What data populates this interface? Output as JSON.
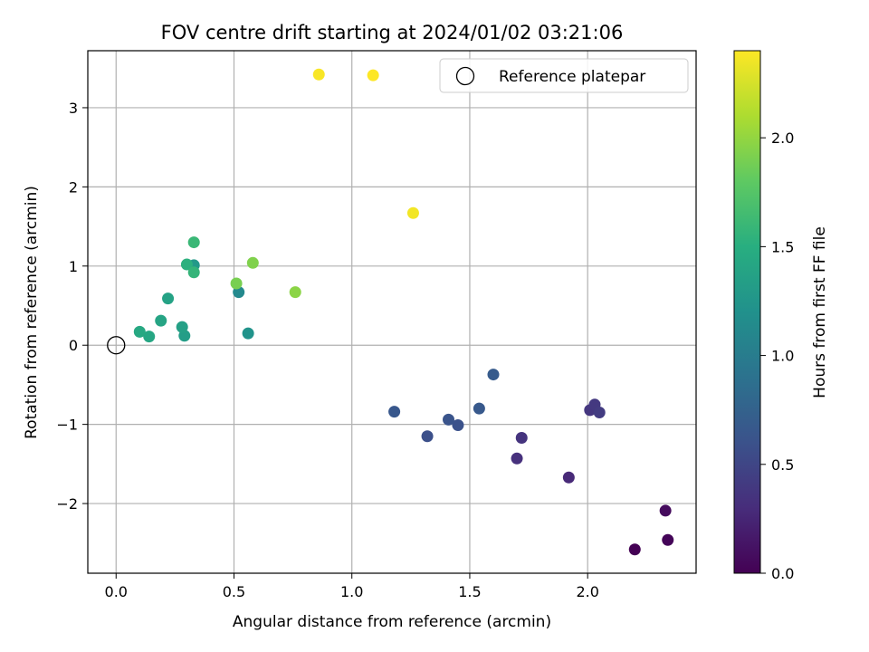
{
  "chart_data": {
    "type": "scatter",
    "title": "FOV centre drift starting at 2024/01/02 03:21:06",
    "xlabel": "Angular distance from reference (arcmin)",
    "ylabel": "Rotation from reference (arcmin)",
    "xlim": [
      -0.12,
      2.46
    ],
    "ylim": [
      -2.88,
      3.72
    ],
    "xticks": [
      0.0,
      0.5,
      1.0,
      1.5,
      2.0
    ],
    "xtick_labels": [
      "0.0",
      "0.5",
      "1.0",
      "1.5",
      "2.0"
    ],
    "yticks": [
      -2,
      -1,
      0,
      1,
      2,
      3
    ],
    "ytick_labels": [
      "−2",
      "−1",
      "0",
      "1",
      "2",
      "3"
    ],
    "grid": true,
    "colormap": "viridis",
    "colorbar": {
      "label": "Hours from first FF file",
      "range": [
        0.0,
        2.4
      ],
      "ticks": [
        0.0,
        0.5,
        1.0,
        1.5,
        2.0
      ],
      "tick_labels": [
        "0.0",
        "0.5",
        "1.0",
        "1.5",
        "2.0"
      ]
    },
    "legend": {
      "position": "top-right",
      "entries": [
        "Reference platepar"
      ]
    },
    "reference_point": {
      "x": 0.0,
      "y": 0.0
    },
    "points": [
      {
        "x": 2.2,
        "y": -2.58,
        "h": 0.0
      },
      {
        "x": 2.34,
        "y": -2.46,
        "h": 0.03
      },
      {
        "x": 2.33,
        "y": -2.09,
        "h": 0.07
      },
      {
        "x": 1.92,
        "y": -1.67,
        "h": 0.28
      },
      {
        "x": 1.7,
        "y": -1.43,
        "h": 0.33
      },
      {
        "x": 1.72,
        "y": -1.17,
        "h": 0.36
      },
      {
        "x": 2.01,
        "y": -0.82,
        "h": 0.38
      },
      {
        "x": 2.03,
        "y": -0.75,
        "h": 0.4
      },
      {
        "x": 2.05,
        "y": -0.85,
        "h": 0.42
      },
      {
        "x": 1.32,
        "y": -1.15,
        "h": 0.58
      },
      {
        "x": 1.45,
        "y": -1.01,
        "h": 0.6
      },
      {
        "x": 1.41,
        "y": -0.94,
        "h": 0.62
      },
      {
        "x": 1.18,
        "y": -0.84,
        "h": 0.65
      },
      {
        "x": 1.54,
        "y": -0.8,
        "h": 0.67
      },
      {
        "x": 1.6,
        "y": -0.37,
        "h": 0.68
      },
      {
        "x": 0.52,
        "y": 0.67,
        "h": 1.12
      },
      {
        "x": 0.56,
        "y": 0.15,
        "h": 1.22
      },
      {
        "x": 0.33,
        "y": 1.01,
        "h": 1.28
      },
      {
        "x": 0.29,
        "y": 0.12,
        "h": 1.32
      },
      {
        "x": 0.28,
        "y": 0.23,
        "h": 1.35
      },
      {
        "x": 0.22,
        "y": 0.59,
        "h": 1.38
      },
      {
        "x": 0.19,
        "y": 0.31,
        "h": 1.4
      },
      {
        "x": 0.14,
        "y": 0.11,
        "h": 1.42
      },
      {
        "x": 0.1,
        "y": 0.17,
        "h": 1.44
      },
      {
        "x": 0.3,
        "y": 1.02,
        "h": 1.52
      },
      {
        "x": 0.33,
        "y": 0.92,
        "h": 1.57
      },
      {
        "x": 0.33,
        "y": 1.3,
        "h": 1.6
      },
      {
        "x": 0.51,
        "y": 0.78,
        "h": 1.9
      },
      {
        "x": 0.58,
        "y": 1.04,
        "h": 1.93
      },
      {
        "x": 0.76,
        "y": 0.67,
        "h": 1.97
      },
      {
        "x": 1.26,
        "y": 1.67,
        "h": 2.36
      },
      {
        "x": 0.86,
        "y": 3.42,
        "h": 2.38
      },
      {
        "x": 1.09,
        "y": 3.41,
        "h": 2.4
      }
    ]
  }
}
